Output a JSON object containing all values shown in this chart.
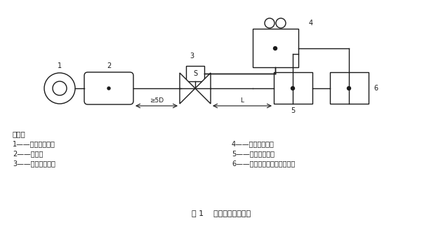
{
  "title": "图 1    响应时间试验装置",
  "legend_header": "说明；",
  "legend_items_left": [
    "1——流体压力源；",
    "2——容器；",
    "3——被试电磁阀；"
  ],
  "legend_items_right": [
    "4——灵敏继电器；",
    "5——压力传感器；",
    "6——快速响应时间测量仪表。"
  ],
  "bg_color": "#ffffff",
  "line_color": "#1a1a1a",
  "label_color": "#1a1a1a"
}
